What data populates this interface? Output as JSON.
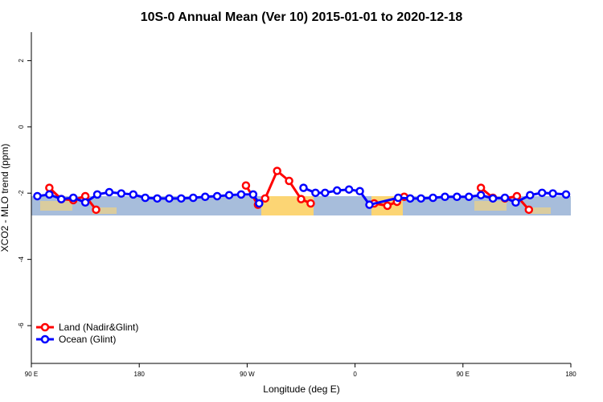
{
  "chart_data": {
    "type": "line",
    "title": "10S-0 Annual Mean (Ver 10)   2015-01-01 to 2020-12-18",
    "x_label": "Longitude (deg E)",
    "y_label": "XCO2 - MLO trend (ppm)",
    "xlim": [
      90,
      540
    ],
    "xticks": [
      {
        "value": 90,
        "label": "90 E"
      },
      {
        "value": 180,
        "label": "180"
      },
      {
        "value": 270,
        "label": "90 W"
      },
      {
        "value": 360,
        "label": "0"
      },
      {
        "value": 450,
        "label": "90 E"
      },
      {
        "value": 540,
        "label": "180"
      }
    ],
    "ylim": [
      -7.14,
      2.86
    ],
    "yticks": [
      2,
      0,
      -2,
      -4,
      -6
    ],
    "legend": "lower left",
    "series": [
      {
        "name": "Land (Nadir&Glint)",
        "color": "#ff0000",
        "x": [
          105,
          115,
          125,
          135,
          144,
          null,
          269,
          279,
          285,
          295,
          305,
          315,
          323,
          null,
          376,
          387,
          395,
          401,
          null,
          465,
          475,
          485,
          495,
          505
        ],
        "values": [
          -1.84,
          -2.18,
          -2.21,
          -2.09,
          -2.5,
          null,
          -1.77,
          -2.35,
          -2.16,
          -1.33,
          -1.63,
          -2.18,
          -2.31,
          null,
          -2.31,
          -2.38,
          -2.26,
          -2.11,
          null,
          -1.84,
          -2.14,
          -2.16,
          -2.09,
          -2.5
        ]
      },
      {
        "name": "Ocean (Glint)",
        "color": "#0000ff",
        "x": [
          95,
          105,
          115,
          125,
          135,
          145,
          155,
          165,
          175,
          185,
          195,
          205,
          215,
          225,
          235,
          245,
          255,
          265,
          275,
          280,
          null,
          317,
          327,
          335,
          345,
          355,
          364,
          372,
          396,
          406,
          415,
          425,
          435,
          445,
          455,
          465,
          475,
          485,
          494,
          506,
          516,
          525,
          536
        ],
        "values": [
          -2.09,
          -2.04,
          -2.18,
          -2.14,
          -2.28,
          -2.04,
          -1.97,
          -2.01,
          -2.04,
          -2.14,
          -2.16,
          -2.16,
          -2.16,
          -2.14,
          -2.11,
          -2.09,
          -2.06,
          -2.04,
          -2.04,
          -2.31,
          null,
          -1.84,
          -1.99,
          -1.99,
          -1.92,
          -1.89,
          -1.94,
          -2.35,
          -2.14,
          -2.16,
          -2.16,
          -2.14,
          -2.11,
          -2.11,
          -2.11,
          -2.06,
          -2.16,
          -2.14,
          -2.28,
          -2.06,
          -1.99,
          -2.01,
          -2.04
        ]
      }
    ]
  }
}
